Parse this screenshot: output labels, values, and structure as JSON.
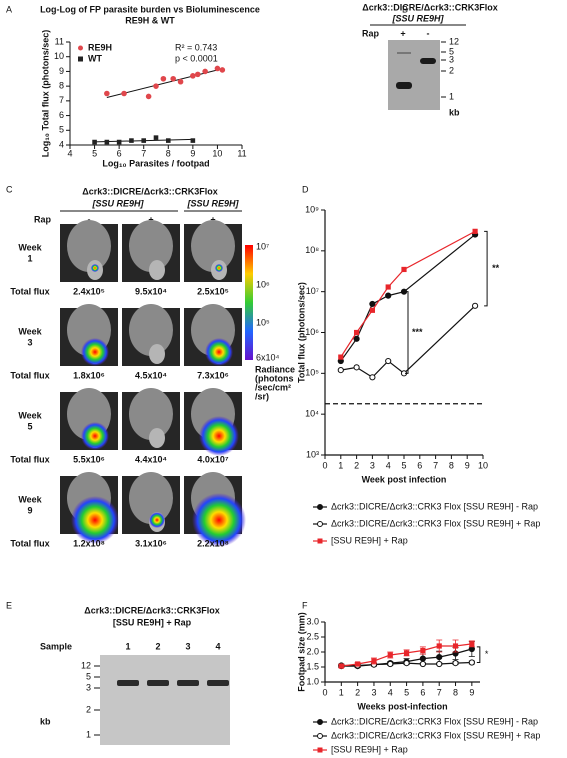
{
  "panel_labels": [
    "A",
    "B",
    "C",
    "D",
    "E",
    "F"
  ],
  "chart_data": [
    {
      "type": "scatter",
      "title": "Log-Log of FP parasite burden vs Bioluminescence",
      "subtitle": "RE9H & WT",
      "xlabel": "Log₁₀ Parasites / footpad",
      "ylabel": "Log₁₀ Total flux (photons/sec)",
      "xlim": [
        4,
        11
      ],
      "ylim": [
        4,
        11
      ],
      "xticks": [
        4,
        5,
        6,
        7,
        8,
        9,
        10,
        11
      ],
      "yticks": [
        4,
        5,
        6,
        7,
        8,
        9,
        10,
        11
      ],
      "fit": true,
      "annotations": [
        "R² = 0.743",
        "p < 0.0001"
      ],
      "series": [
        {
          "name": "RE9H",
          "color": "#e0474c",
          "marker": "circle",
          "x": [
            5.5,
            6.2,
            7.2,
            7.5,
            7.8,
            8.2,
            8.5,
            9.0,
            9.2,
            9.5,
            10.0,
            10.2
          ],
          "values": [
            7.5,
            7.5,
            7.3,
            8.0,
            8.5,
            8.5,
            8.3,
            8.7,
            8.8,
            9.0,
            9.2,
            9.1
          ]
        },
        {
          "name": "WT",
          "color": "#222222",
          "marker": "square",
          "x": [
            5.0,
            5.5,
            6.0,
            6.5,
            7.0,
            7.5,
            8.0,
            9.0
          ],
          "values": [
            4.2,
            4.2,
            4.2,
            4.3,
            4.3,
            4.5,
            4.3,
            4.3
          ]
        }
      ]
    },
    {
      "type": "line",
      "log_y": true,
      "xlabel": "Week post infection",
      "ylabel": "Total flux (photons/sec)",
      "xlim": [
        0,
        10
      ],
      "ylim": [
        1000,
        1000000000
      ],
      "xticks": [
        0,
        1,
        2,
        3,
        4,
        5,
        6,
        7,
        8,
        9,
        10
      ],
      "yticks": [
        {
          "value": 1000,
          "label": "10³"
        },
        {
          "value": 10000,
          "label": "10⁴"
        },
        {
          "value": 100000,
          "label": "10⁵"
        },
        {
          "value": 1000000,
          "label": "10⁶"
        },
        {
          "value": 10000000,
          "label": "10⁷"
        },
        {
          "value": 100000000,
          "label": "10⁸"
        },
        {
          "value": 1000000000,
          "label": "10⁹"
        }
      ],
      "threshold": 18000,
      "annotations": [
        "***",
        "**"
      ],
      "series": [
        {
          "name": "Δcrk3::DICRE/Δcrk3::CRK3 Flox [SSU RE9H] - Rap",
          "color": "#111111",
          "marker": "circle",
          "x": [
            1,
            2,
            3,
            4,
            5,
            9.5
          ],
          "values": [
            200000,
            700000,
            5000000,
            8000000,
            10000000,
            250000000
          ]
        },
        {
          "name": "Δcrk3::DICRE/Δcrk3::CRK3 Flox [SSU RE9H] + Rap",
          "color": "#111111",
          "marker": "open-circle",
          "x": [
            1,
            2,
            3,
            4,
            5,
            9.5
          ],
          "values": [
            120000,
            140000,
            80000,
            200000,
            100000,
            4500000
          ]
        },
        {
          "name": "[SSU RE9H] + Rap",
          "color": "#e8262b",
          "marker": "square",
          "x": [
            1,
            2,
            3,
            4,
            5,
            9.5
          ],
          "values": [
            250000,
            1000000,
            3500000,
            13000000,
            35000000,
            300000000
          ]
        }
      ]
    },
    {
      "type": "line",
      "xlabel": "Weeks post-infection",
      "ylabel": "Footpad size (mm)",
      "xlim": [
        0,
        9.5
      ],
      "ylim": [
        1,
        3
      ],
      "xticks": [
        0,
        1,
        2,
        3,
        4,
        5,
        6,
        7,
        8,
        9
      ],
      "yticks": [
        {
          "value": 1,
          "label": "1.0"
        },
        {
          "value": 1.5,
          "label": "1.5"
        },
        {
          "value": 2,
          "label": "2.0"
        },
        {
          "value": 2.5,
          "label": "2.5"
        },
        {
          "value": 3,
          "label": "3.0"
        }
      ],
      "annotations": [
        "*"
      ],
      "series": [
        {
          "name": "Δcrk3::DICRE/Δcrk3::CRK3 Flox [SSU RE9H] - Rap",
          "color": "#111111",
          "marker": "circle",
          "x": [
            1,
            2,
            3,
            4,
            5,
            6,
            7,
            8,
            9
          ],
          "values": [
            1.53,
            1.53,
            1.58,
            1.63,
            1.68,
            1.78,
            1.83,
            1.95,
            2.1
          ],
          "errors": [
            0.05,
            0.05,
            0.05,
            0.05,
            0.1,
            0.15,
            0.2,
            0.2,
            0.25
          ]
        },
        {
          "name": "Δcrk3::DICRE/Δcrk3::CRK3 Flox [SSU RE9H] + Rap",
          "color": "#111111",
          "marker": "open-circle",
          "x": [
            1,
            2,
            3,
            4,
            5,
            6,
            7,
            8,
            9
          ],
          "values": [
            1.55,
            1.55,
            1.58,
            1.6,
            1.63,
            1.6,
            1.6,
            1.63,
            1.65
          ],
          "errors": [
            0.05,
            0.05,
            0.05,
            0.05,
            0.05,
            0.03,
            0.03,
            0.05,
            0.05
          ]
        },
        {
          "name": "[SSU RE9H] + Rap",
          "color": "#e8262b",
          "marker": "square",
          "x": [
            1,
            2,
            3,
            4,
            5,
            6,
            7,
            8,
            9
          ],
          "values": [
            1.53,
            1.6,
            1.7,
            1.9,
            1.97,
            2.05,
            2.2,
            2.2,
            2.27
          ],
          "errors": [
            0.05,
            0.05,
            0.1,
            0.1,
            0.1,
            0.12,
            0.2,
            0.2,
            0.1
          ]
        }
      ]
    }
  ],
  "gel_b": {
    "header": [
      "Δcrk3::DICRE/Δcrk3::CRK3Flox",
      "[SSU RE9H]"
    ],
    "rap": "Rap",
    "lanes": [
      "+",
      "-"
    ],
    "ladder": [
      "12",
      "5",
      "3",
      "2",
      "1"
    ],
    "unit": "kb"
  },
  "imaging_c": {
    "header": [
      "Δcrk3::DICRE/Δcrk3::CRK3Flox",
      "[SSU RE9H]",
      "[SSU RE9H]"
    ],
    "rap": "Rap",
    "columns": [
      "-",
      "+",
      "+"
    ],
    "flux_label": "Total flux",
    "rows": [
      {
        "label": [
          "Week",
          "1"
        ],
        "flux": [
          "2.4x10⁵",
          "9.5x10⁴",
          "2.5x10⁵"
        ]
      },
      {
        "label": [
          "Week",
          "3"
        ],
        "flux": [
          "1.8x10⁶",
          "4.5x10⁴",
          "7.3x10⁶"
        ]
      },
      {
        "label": [
          "Week",
          "5"
        ],
        "flux": [
          "5.5x10⁶",
          "4.4x10⁴",
          "4.0x10⁷"
        ]
      },
      {
        "label": [
          "Week",
          "9"
        ],
        "flux": [
          "1.2x10⁸",
          "3.1x10⁶",
          "2.2x10⁸"
        ]
      }
    ],
    "colorbar": [
      "10⁷",
      "10⁶",
      "10⁵",
      "6x10⁴"
    ],
    "colorbar_title": [
      "Radiance",
      "(photons",
      "/sec/cm²",
      "/sr)"
    ]
  },
  "gel_e": {
    "header": [
      "Δcrk3::DICRE/Δcrk3::CRK3Flox",
      "[SSU RE9H] + Rap"
    ],
    "sample": "Sample",
    "lanes": [
      "1",
      "2",
      "3",
      "4"
    ],
    "ladder": [
      "12",
      "5",
      "3",
      "2",
      "1"
    ],
    "unit": "kb"
  }
}
